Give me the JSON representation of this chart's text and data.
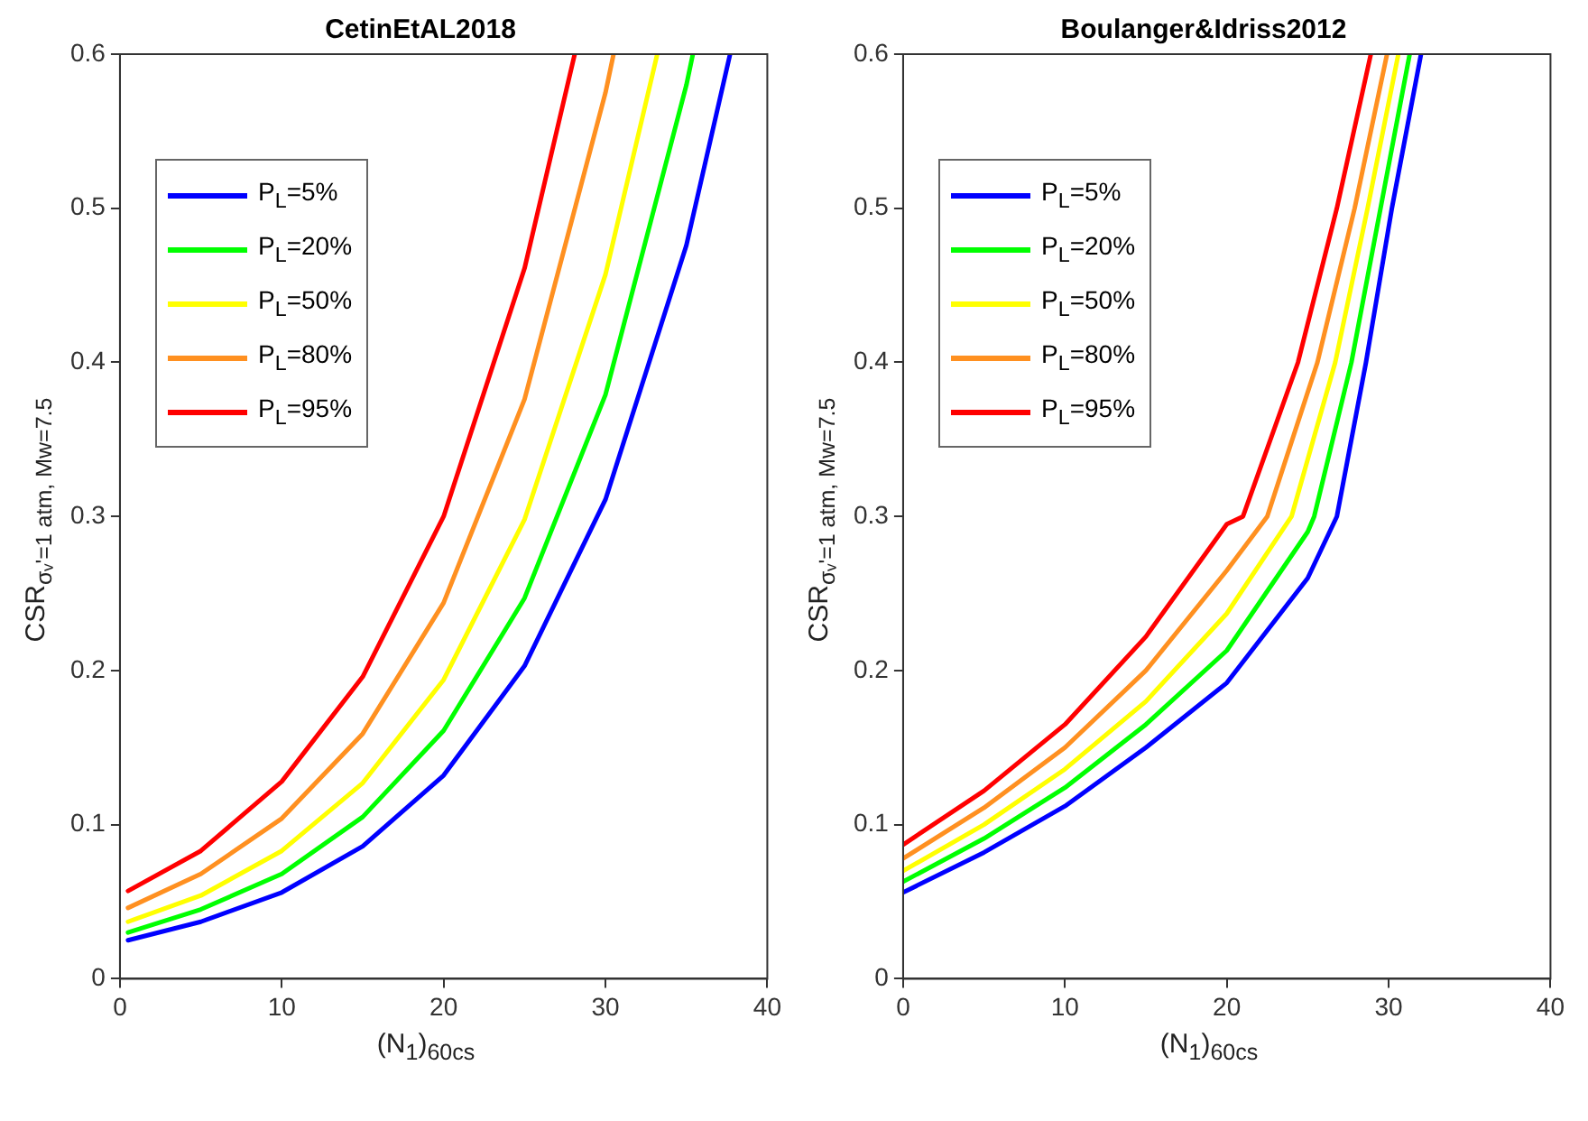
{
  "chart_data": [
    {
      "type": "line",
      "title": "CetinEtAL2018",
      "xlabel": "(N$_{1}$)$_{60cs}$",
      "ylabel": "CSR$_{σᵥ'=1 atm, Mw=7.5}$",
      "xlim": [
        0,
        40
      ],
      "ylim": [
        0,
        0.6
      ],
      "xticks": [
        0,
        10,
        20,
        30,
        40
      ],
      "yticks": [
        0,
        0.1,
        0.2,
        0.3,
        0.4,
        0.5,
        0.6
      ],
      "legend": "top left",
      "marker": "none",
      "line_style": "solid",
      "series": [
        {
          "name": "P$_{L}$=5%",
          "color": "#0000ff",
          "x": [
            0.5,
            5,
            10,
            15,
            20,
            25,
            30,
            35,
            37.7
          ],
          "values": [
            0.025,
            0.037,
            0.056,
            0.086,
            0.132,
            0.203,
            0.311,
            0.476,
            0.6
          ]
        },
        {
          "name": "P$_{L}$=20%",
          "color": "#00ff00",
          "x": [
            0.5,
            5,
            10,
            15,
            20,
            25,
            30,
            35,
            35.4
          ],
          "values": [
            0.03,
            0.045,
            0.068,
            0.105,
            0.161,
            0.247,
            0.379,
            0.58,
            0.6
          ]
        },
        {
          "name": "P$_{L}$=50%",
          "color": "#ffff00",
          "x": [
            0.5,
            5,
            10,
            15,
            20,
            25,
            30,
            33.2
          ],
          "values": [
            0.037,
            0.054,
            0.083,
            0.127,
            0.194,
            0.298,
            0.457,
            0.6
          ]
        },
        {
          "name": "P$_{L}$=80%",
          "color": "#ff9020",
          "x": [
            0.5,
            5,
            10,
            15,
            20,
            25,
            30,
            30.5
          ],
          "values": [
            0.046,
            0.068,
            0.104,
            0.159,
            0.244,
            0.376,
            0.575,
            0.6
          ]
        },
        {
          "name": "P$_{L}$=95%",
          "color": "#ff0000",
          "x": [
            0.5,
            5,
            10,
            15,
            20,
            25,
            28.1
          ],
          "values": [
            0.057,
            0.083,
            0.128,
            0.196,
            0.3,
            0.461,
            0.6
          ]
        }
      ]
    },
    {
      "type": "line",
      "title": "Boulanger&Idriss2012",
      "xlabel": "(N$_{1}$)$_{60cs}$",
      "ylabel": "CSR$_{σᵥ'=1 atm, Mw=7.5}$",
      "xlim": [
        0,
        40
      ],
      "ylim": [
        0,
        0.6
      ],
      "xticks": [
        0,
        10,
        20,
        30,
        40
      ],
      "yticks": [
        0,
        0.1,
        0.2,
        0.3,
        0.4,
        0.5,
        0.6
      ],
      "legend": "top left",
      "marker": "none",
      "line_style": "solid",
      "series": [
        {
          "name": "P$_{L}$=5%",
          "color": "#0000ff",
          "x": [
            0,
            5,
            10,
            15,
            20,
            25,
            26.8,
            28.6,
            30.2,
            32.0
          ],
          "values": [
            0.056,
            0.082,
            0.112,
            0.15,
            0.192,
            0.26,
            0.3,
            0.4,
            0.5,
            0.6
          ]
        },
        {
          "name": "P$_{L}$=20%",
          "color": "#00ff00",
          "x": [
            0,
            5,
            10,
            15,
            20,
            25,
            25.4,
            27.7,
            29.5,
            31.3
          ],
          "values": [
            0.063,
            0.091,
            0.124,
            0.165,
            0.213,
            0.29,
            0.3,
            0.4,
            0.5,
            0.6
          ]
        },
        {
          "name": "P$_{L}$=50%",
          "color": "#ffff00",
          "x": [
            0,
            5,
            10,
            15,
            20,
            24.0,
            26.7,
            28.7,
            30.6
          ],
          "values": [
            0.07,
            0.1,
            0.136,
            0.18,
            0.237,
            0.3,
            0.4,
            0.5,
            0.6
          ]
        },
        {
          "name": "P$_{L}$=80%",
          "color": "#ff9020",
          "x": [
            0,
            5,
            10,
            15,
            20,
            22.5,
            25.6,
            27.9,
            29.9
          ],
          "values": [
            0.078,
            0.111,
            0.15,
            0.2,
            0.265,
            0.3,
            0.4,
            0.5,
            0.6
          ]
        },
        {
          "name": "P$_{L}$=95%",
          "color": "#ff0000",
          "x": [
            0,
            5,
            10,
            15,
            20,
            21.0,
            24.4,
            26.8,
            28.9
          ],
          "values": [
            0.087,
            0.122,
            0.165,
            0.222,
            0.295,
            0.3,
            0.4,
            0.5,
            0.6
          ]
        }
      ]
    }
  ]
}
